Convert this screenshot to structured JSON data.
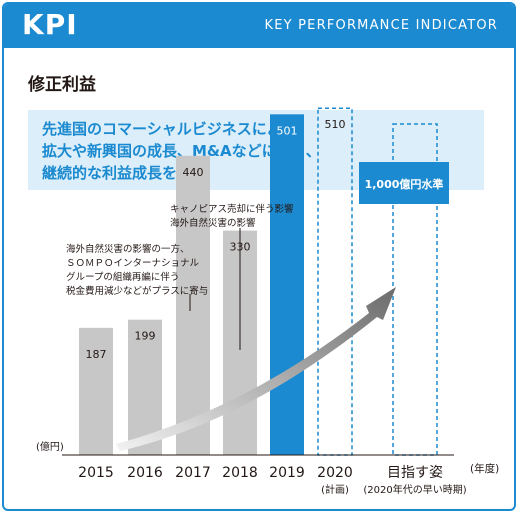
{
  "header": {
    "title": "KPI",
    "subtitle": "KEY PERFORMANCE INDICATOR"
  },
  "section_title": "修正利益",
  "callout": {
    "lines": [
      "先進国のコマーシャルビジネスによる",
      "拡大や新興国の成長、M&Aなどにより、",
      "継続的な利益成長を想定"
    ]
  },
  "annotations": {
    "a2017": [
      "海外自然災害の影響の一方、",
      "ＳＯＭＰＯインターナショナル",
      "グループの組織再編に伴う",
      "税金費用減少などがプラスに寄与"
    ],
    "a2018": [
      "キャノピアス売却に伴う影響",
      "海外自然災害の影響"
    ]
  },
  "colors": {
    "accent": "#1b8ad0",
    "bar_gray": "#c7c7c7",
    "callout_bg": "#dbeef9",
    "arrow_dark": "#6b6b6b"
  },
  "chart_data": {
    "type": "bar",
    "categories": [
      "2015",
      "2016",
      "2017",
      "2018",
      "2019",
      "2020",
      "目指す姿"
    ],
    "category_sublabels": [
      "",
      "",
      "",
      "",
      "",
      "(計画)",
      "(2020年代の早い時期)"
    ],
    "values": [
      187,
      199,
      440,
      330,
      501,
      510,
      1000
    ],
    "value_labels": [
      "187",
      "199",
      "440",
      "330",
      "501",
      "510",
      "1,000億円水準"
    ],
    "bar_styles": [
      "actual",
      "actual",
      "actual",
      "actual",
      "highlight",
      "plan-dashed",
      "target-dashed"
    ],
    "unit_label": "(億円)",
    "xlabel": "(年度)",
    "ylim": [
      0,
      1100
    ]
  }
}
